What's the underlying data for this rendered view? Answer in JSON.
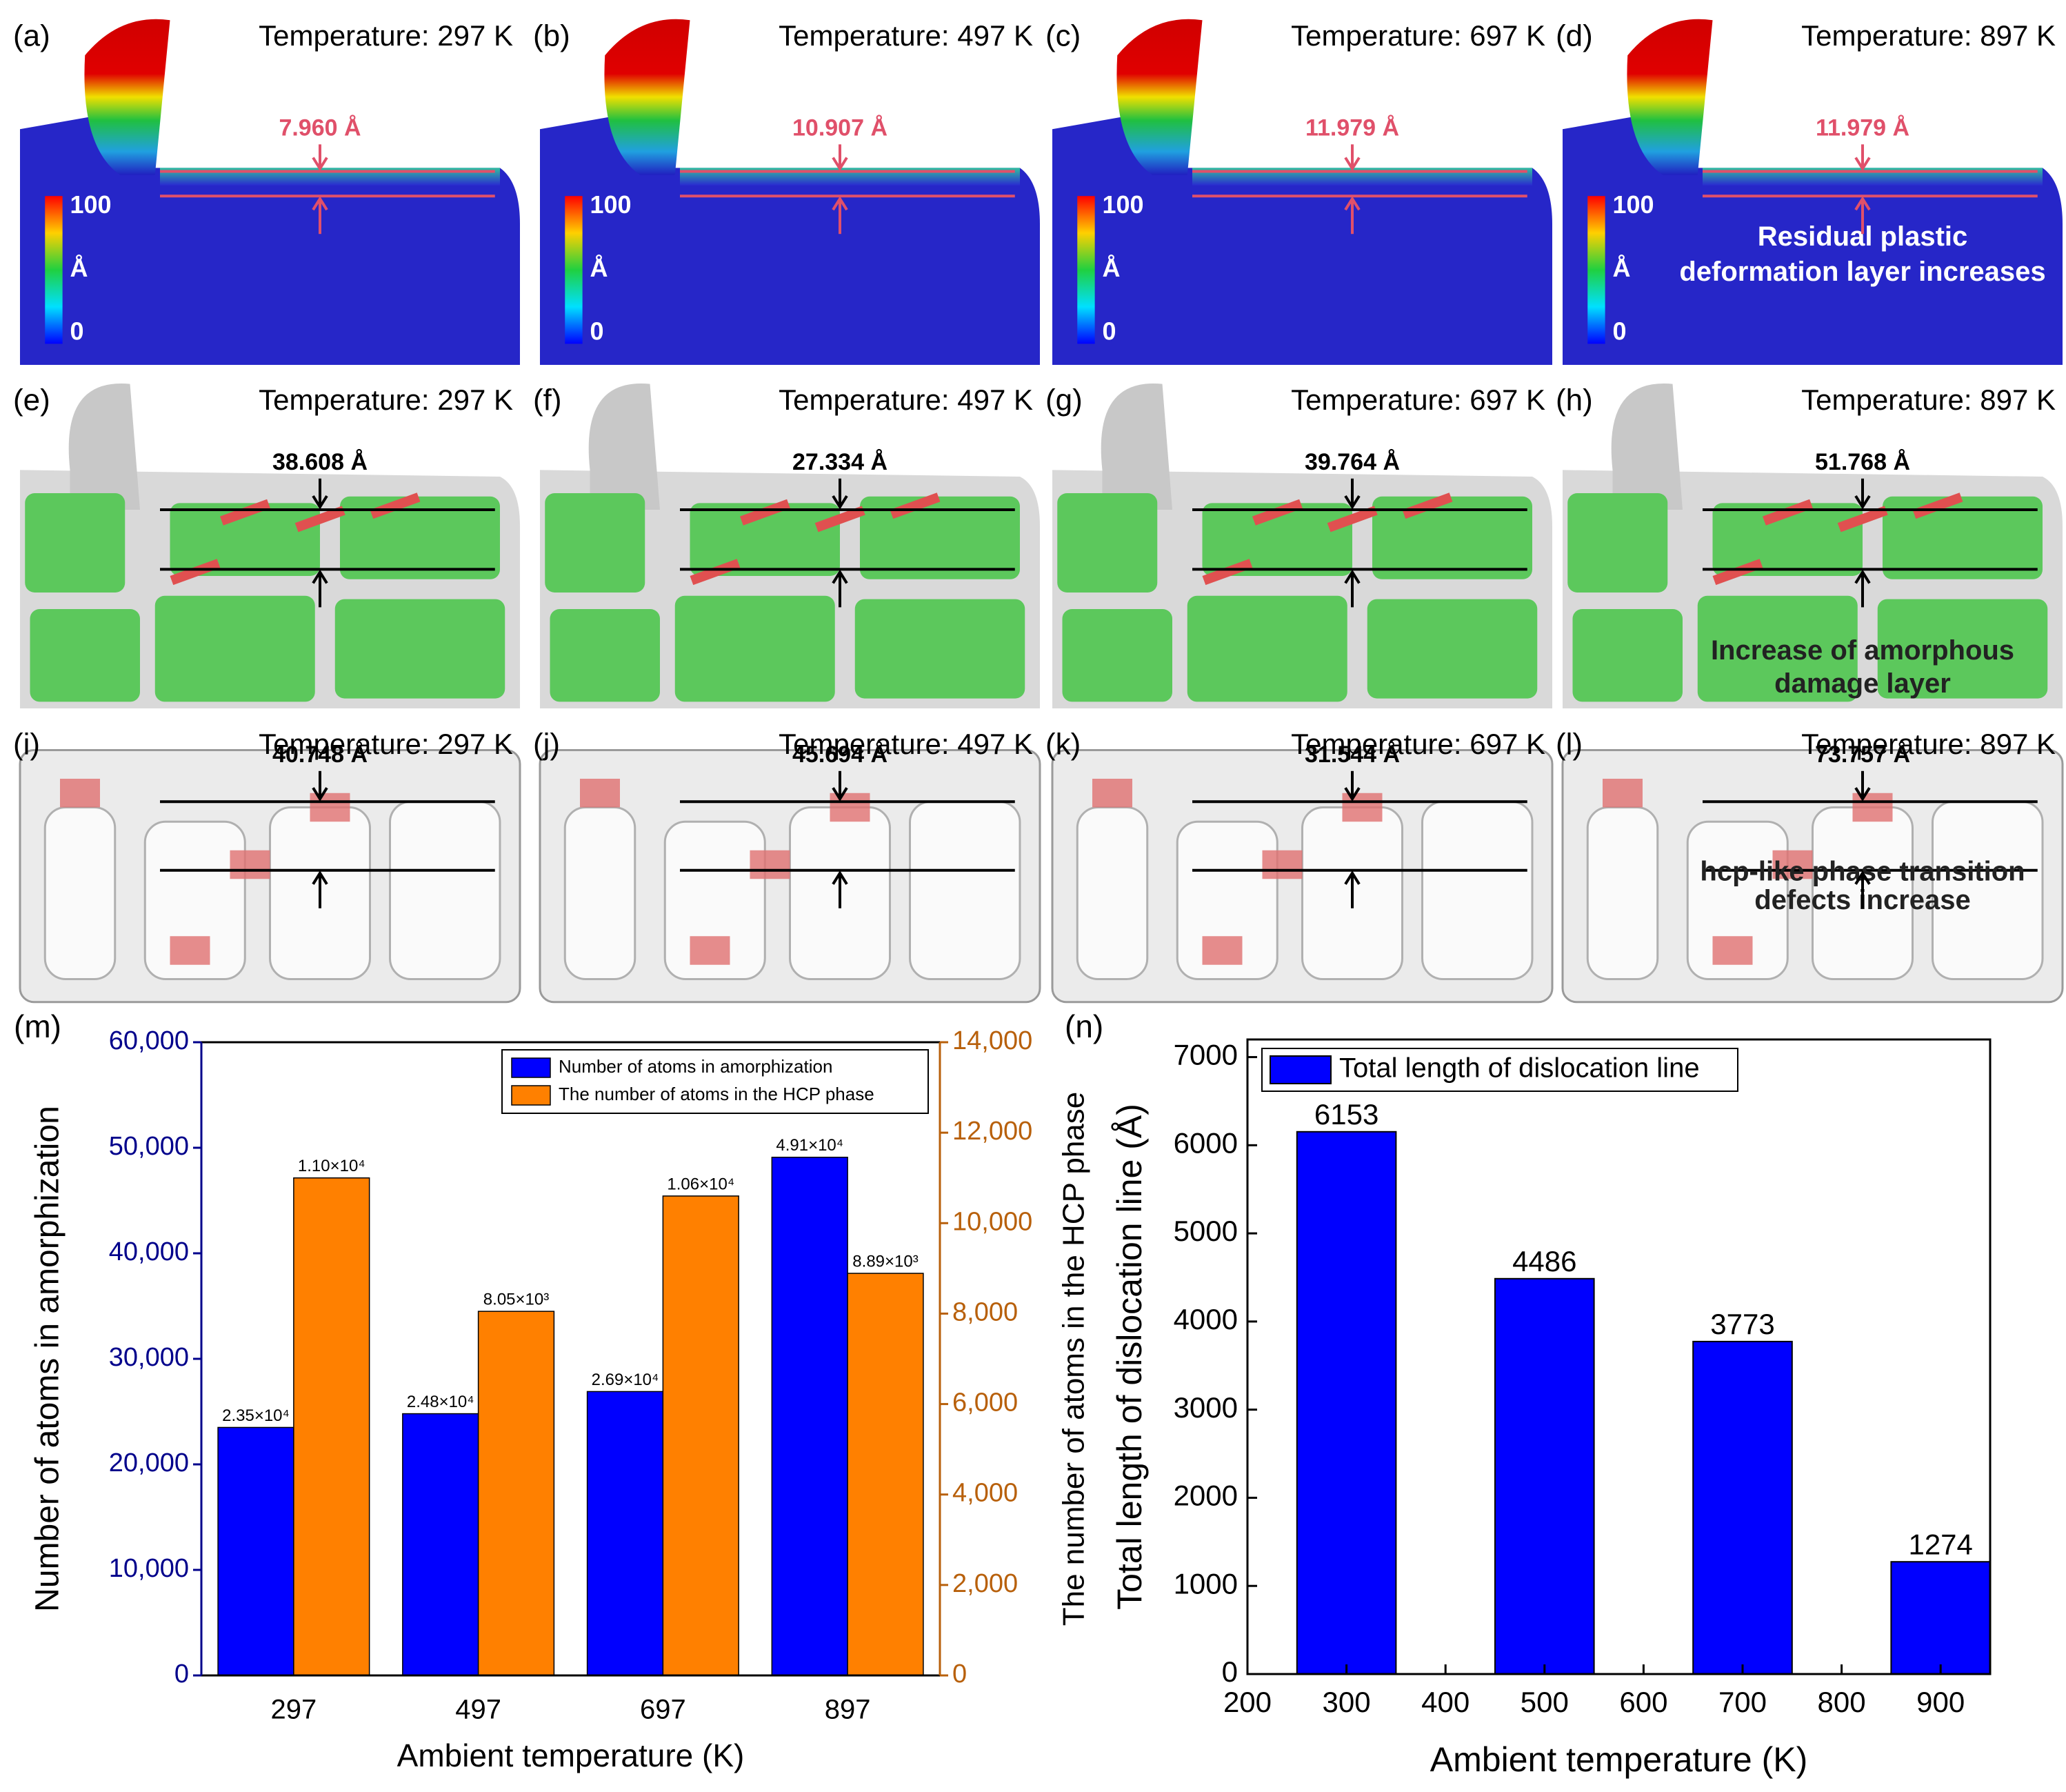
{
  "panels": [
    {
      "label": "(a)",
      "temperature": "Temperature: 297 K",
      "measurement": "7.960 Å",
      "colorbar": {
        "max": "100",
        "unit": "Å",
        "min": "0"
      }
    },
    {
      "label": "(b)",
      "temperature": "Temperature: 497 K",
      "measurement": "10.907 Å",
      "colorbar": {
        "max": "100",
        "unit": "Å",
        "min": "0"
      }
    },
    {
      "label": "(c)",
      "temperature": "Temperature: 697 K",
      "measurement": "11.979 Å",
      "colorbar": {
        "max": "100",
        "unit": "Å",
        "min": "0"
      }
    },
    {
      "label": "(d)",
      "temperature": "Temperature: 897 K",
      "measurement": "11.979 Å",
      "colorbar": {
        "max": "100",
        "unit": "Å",
        "min": "0"
      },
      "annotation": [
        "Residual plastic",
        "deformation layer increases"
      ]
    },
    {
      "label": "(e)",
      "temperature": "Temperature: 297 K",
      "measurement": "38.608 Å"
    },
    {
      "label": "(f)",
      "temperature": "Temperature: 497 K",
      "measurement": "27.334 Å"
    },
    {
      "label": "(g)",
      "temperature": "Temperature: 697 K",
      "measurement": "39.764 Å"
    },
    {
      "label": "(h)",
      "temperature": "Temperature: 897 K",
      "measurement": "51.768 Å",
      "annotation": [
        "Increase of amorphous",
        "damage layer"
      ]
    },
    {
      "label": "(i)",
      "temperature": "Temperature: 297 K",
      "measurement": "40.748 Å"
    },
    {
      "label": "(j)",
      "temperature": "Temperature: 497 K",
      "measurement": "45.694 Å"
    },
    {
      "label": "(k)",
      "temperature": "Temperature: 697 K",
      "measurement": "31.544 Å"
    },
    {
      "label": "(l)",
      "temperature": "Temperature: 897 K",
      "measurement": "73.757 Å",
      "annotation": [
        "hcp-like phase transition",
        "defects increase"
      ]
    }
  ],
  "chart_data": [
    {
      "type": "grouped-bar",
      "panel_label": "(m)",
      "xlabel": "Ambient temperature (K)",
      "ylabel": "Number of atoms in amorphization",
      "y2label": "The number of atoms in the HCP phase",
      "categories": [
        "297",
        "497",
        "697",
        "897"
      ],
      "series": [
        {
          "name": "Number of atoms in amorphization",
          "color": "#0000ff",
          "values": [
            23500,
            24800,
            26900,
            49100
          ],
          "value_labels": [
            "2.35×10⁴",
            "2.48×10⁴",
            "2.69×10⁴",
            "4.91×10⁴"
          ]
        },
        {
          "name": "The number of atoms in the HCP phase",
          "color": "#ff8000",
          "axis": "y2",
          "values": [
            11000,
            8050,
            10600,
            8890
          ],
          "value_labels": [
            "1.10×10⁴",
            "8.05×10³",
            "1.06×10⁴",
            "8.89×10³"
          ]
        }
      ],
      "ylim": [
        0,
        60000
      ],
      "yticks": [
        0,
        {
          "value": 10000,
          "label": "10,000"
        },
        {
          "value": 20000,
          "label": "20,000"
        },
        {
          "value": 30000,
          "label": "30,000"
        },
        {
          "value": 40000,
          "label": "40,000"
        },
        {
          "value": 50000,
          "label": "50,000"
        },
        {
          "value": 60000,
          "label": "60,000"
        }
      ],
      "y2lim": [
        0,
        14000
      ],
      "y2ticks": [
        0,
        {
          "value": 2000,
          "label": "2,000"
        },
        {
          "value": 4000,
          "label": "4,000"
        },
        {
          "value": 6000,
          "label": "6,000"
        },
        {
          "value": 8000,
          "label": "8,000"
        },
        {
          "value": 10000,
          "label": "10,000"
        },
        {
          "value": 12000,
          "label": "12,000"
        },
        {
          "value": 14000,
          "label": "14,000"
        }
      ],
      "ycolor": "#00008b",
      "y2color": "#b8600b",
      "legend": "top-right"
    },
    {
      "type": "bar",
      "panel_label": "(n)",
      "xlabel": "Ambient temperature (K)",
      "ylabel": "Total length of dislocation line (Å)",
      "x": [
        300,
        500,
        700,
        900
      ],
      "values": [
        6153,
        4486,
        3773,
        1274
      ],
      "series_name": "Total length of dislocation line",
      "color": "#0000ff",
      "xlim": [
        200,
        950
      ],
      "xticks": [
        200,
        300,
        400,
        500,
        600,
        700,
        800,
        900
      ],
      "ylim": [
        0,
        7200
      ],
      "yticks": [
        0,
        1000,
        2000,
        3000,
        4000,
        5000,
        6000,
        7000
      ],
      "legend": "top-left"
    }
  ]
}
